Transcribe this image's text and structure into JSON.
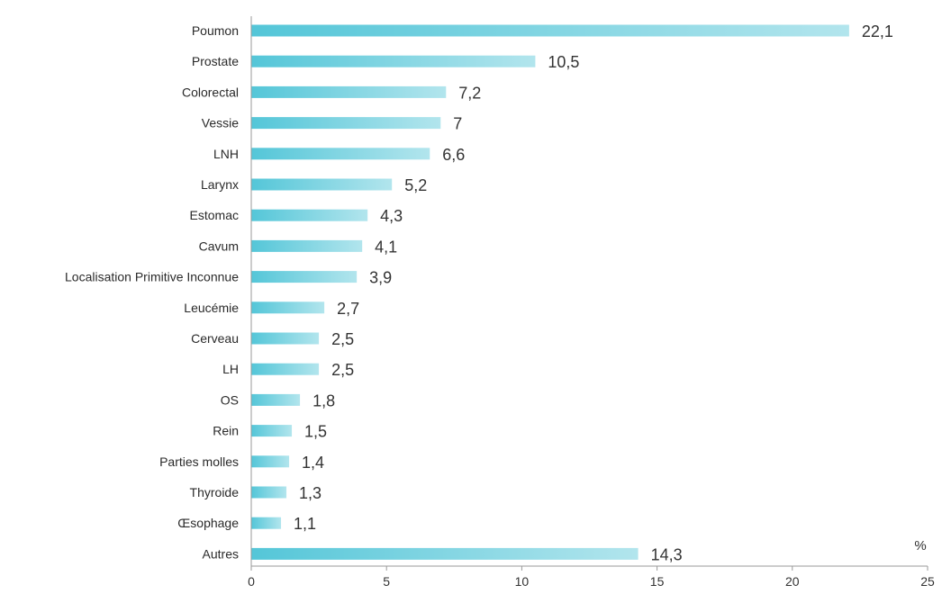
{
  "chart_data": {
    "type": "bar",
    "orientation": "horizontal",
    "categories": [
      "Poumon",
      "Prostate",
      "Colorectal",
      "Vessie",
      "LNH",
      "Larynx",
      "Estomac",
      "Cavum",
      "Localisation Primitive Inconnue",
      "Leucémie",
      "Cerveau",
      "LH",
      "OS",
      "Rein",
      "Parties molles",
      "Thyroide",
      "Œsophage",
      "Autres"
    ],
    "values": [
      22.1,
      10.5,
      7.2,
      7,
      6.6,
      5.2,
      4.3,
      4.1,
      3.9,
      2.7,
      2.5,
      2.5,
      1.8,
      1.5,
      1.4,
      1.3,
      1.1,
      14.3
    ],
    "value_labels": [
      "22,1",
      "10,5",
      "7,2",
      "7",
      "6,6",
      "5,2",
      "4,3",
      "4,1",
      "3,9",
      "2,7",
      "2,5",
      "2,5",
      "1,8",
      "1,5",
      "1,4",
      "1,3",
      "1,1",
      "14,3"
    ],
    "xlim": [
      0,
      25
    ],
    "xticks": [
      0,
      5,
      10,
      15,
      20,
      25
    ],
    "xtick_labels": [
      "0",
      "5",
      "10",
      "15",
      "20",
      "25"
    ],
    "x_unit": "%",
    "grid": false,
    "colors": {
      "bar_start": "#54c6d8",
      "bar_end": "#b2e5ed",
      "axis": "#9a9a9a"
    }
  }
}
